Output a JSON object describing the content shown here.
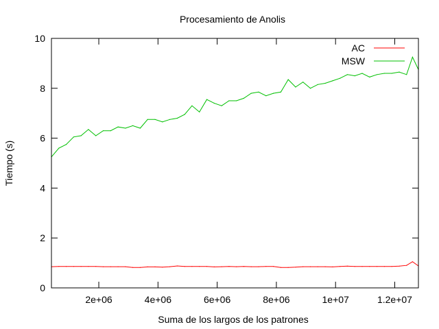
{
  "chart_data": {
    "type": "line",
    "title": "Procesamiento de Anolis",
    "xlabel": "Suma de los largos de los patrones",
    "ylabel": "Tiempo (s)",
    "xlim": [
      400000,
      12800000
    ],
    "ylim": [
      0,
      10
    ],
    "grid": false,
    "legend_position": "top-right",
    "x_ticks": [
      {
        "value": 2000000,
        "label": "2e+06"
      },
      {
        "value": 4000000,
        "label": "4e+06"
      },
      {
        "value": 6000000,
        "label": "6e+06"
      },
      {
        "value": 8000000,
        "label": "8e+06"
      },
      {
        "value": 10000000,
        "label": "1e+07"
      },
      {
        "value": 12000000,
        "label": "1.2e+07"
      }
    ],
    "y_ticks": [
      {
        "value": 0,
        "label": "0"
      },
      {
        "value": 2,
        "label": "2"
      },
      {
        "value": 4,
        "label": "4"
      },
      {
        "value": 6,
        "label": "6"
      },
      {
        "value": 8,
        "label": "8"
      },
      {
        "value": 10,
        "label": "10"
      }
    ],
    "x": [
      400000,
      650000,
      900000,
      1150000,
      1400000,
      1650000,
      1900000,
      2150000,
      2400000,
      2650000,
      2900000,
      3150000,
      3400000,
      3650000,
      3900000,
      4150000,
      4400000,
      4650000,
      4900000,
      5150000,
      5400000,
      5650000,
      5900000,
      6150000,
      6400000,
      6650000,
      6900000,
      7150000,
      7400000,
      7650000,
      7900000,
      8150000,
      8400000,
      8650000,
      8900000,
      9150000,
      9400000,
      9650000,
      9900000,
      10150000,
      10400000,
      10650000,
      10900000,
      11150000,
      11400000,
      11650000,
      11900000,
      12150000,
      12400000,
      12600000,
      12800000
    ],
    "series": [
      {
        "name": "AC",
        "color": "#ff0000",
        "values": [
          0.85,
          0.86,
          0.86,
          0.86,
          0.86,
          0.86,
          0.86,
          0.85,
          0.85,
          0.85,
          0.85,
          0.82,
          0.82,
          0.84,
          0.84,
          0.83,
          0.85,
          0.88,
          0.86,
          0.86,
          0.86,
          0.86,
          0.84,
          0.85,
          0.86,
          0.85,
          0.86,
          0.85,
          0.85,
          0.86,
          0.86,
          0.82,
          0.82,
          0.83,
          0.85,
          0.85,
          0.85,
          0.85,
          0.84,
          0.86,
          0.87,
          0.86,
          0.86,
          0.86,
          0.86,
          0.86,
          0.86,
          0.87,
          0.9,
          1.05,
          0.88
        ]
      },
      {
        "name": "MSW",
        "color": "#00c000",
        "values": [
          5.25,
          5.6,
          5.75,
          6.05,
          6.1,
          6.35,
          6.1,
          6.3,
          6.3,
          6.45,
          6.4,
          6.5,
          6.4,
          6.75,
          6.75,
          6.65,
          6.75,
          6.8,
          6.95,
          7.3,
          7.05,
          7.55,
          7.4,
          7.3,
          7.5,
          7.5,
          7.6,
          7.8,
          7.85,
          7.7,
          7.8,
          7.85,
          8.35,
          8.05,
          8.25,
          8.0,
          8.15,
          8.2,
          8.3,
          8.4,
          8.55,
          8.5,
          8.6,
          8.45,
          8.55,
          8.6,
          8.6,
          8.65,
          8.55,
          9.25,
          8.75
        ]
      }
    ]
  }
}
